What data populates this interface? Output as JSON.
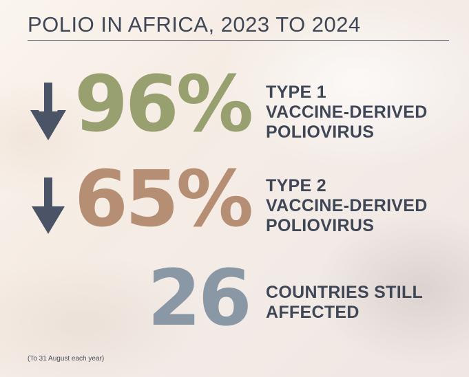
{
  "title": "POLIO IN AFRICA, 2023 TO 2024",
  "colors": {
    "arrow": "#4b5466",
    "stat1": "#98a070",
    "stat2": "#b68e74",
    "stat3": "#8a98a6",
    "label": "#3f4757"
  },
  "stats": [
    {
      "direction_icon": "down-arrow-icon",
      "value": "96%",
      "label_lines": [
        "TYPE 1",
        "VACCINE-DERIVED",
        "POLIOVIRUS"
      ]
    },
    {
      "direction_icon": "down-arrow-icon",
      "value": "65%",
      "label_lines": [
        "TYPE 2",
        "VACCINE-DERIVED",
        "POLIOVIRUS"
      ]
    },
    {
      "value": "26",
      "label_lines": [
        "COUNTRIES STILL",
        "AFFECTED"
      ]
    }
  ],
  "footnote": "(To 31 August each year)"
}
